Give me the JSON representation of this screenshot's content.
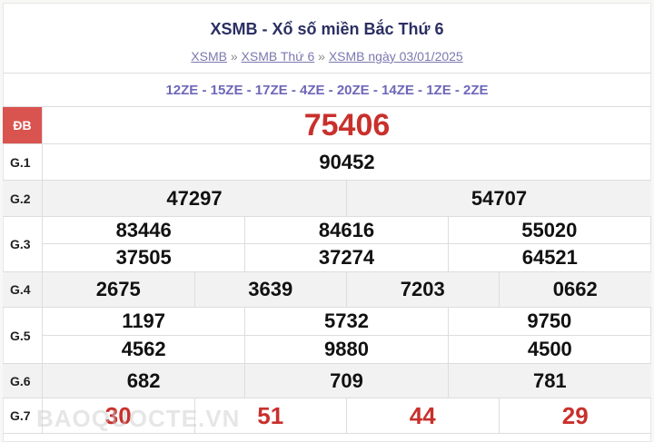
{
  "header": {
    "title": "XSMB - Xổ số miền Bắc Thứ 6",
    "breadcrumb": [
      "XSMB",
      "XSMB Thứ 6",
      "XSMB ngày 03/01/2025"
    ],
    "separator": "»"
  },
  "codes": "12ZE - 15ZE - 17ZE - 4ZE - 20ZE - 14ZE - 1ZE - 2ZE",
  "prizes": [
    {
      "label": "ĐB",
      "numbers": [
        "75406"
      ]
    },
    {
      "label": "G.1",
      "numbers": [
        "90452"
      ]
    },
    {
      "label": "G.2",
      "numbers": [
        "47297",
        "54707"
      ]
    },
    {
      "label": "G.3",
      "numbers": [
        "83446",
        "84616",
        "55020",
        "37505",
        "37274",
        "64521"
      ]
    },
    {
      "label": "G.4",
      "numbers": [
        "2675",
        "3639",
        "7203",
        "0662"
      ]
    },
    {
      "label": "G.5",
      "numbers": [
        "1197",
        "5732",
        "9750",
        "4562",
        "9880",
        "4500"
      ]
    },
    {
      "label": "G.6",
      "numbers": [
        "682",
        "709",
        "781"
      ]
    },
    {
      "label": "G.7",
      "numbers": [
        "30",
        "51",
        "44",
        "29"
      ]
    }
  ],
  "watermark": "BAOQUOCTE.VN",
  "colors": {
    "special": "#c9302c",
    "title": "#2b2f63",
    "codes": "#6c68b8"
  }
}
